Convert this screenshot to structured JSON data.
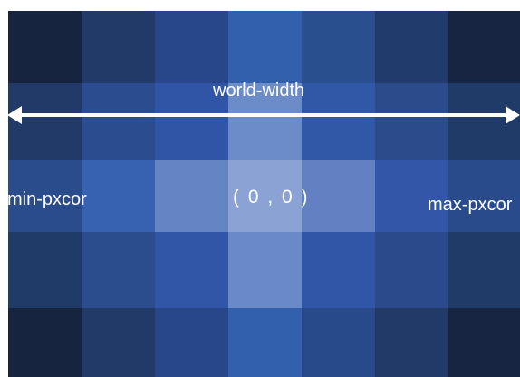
{
  "diagram": {
    "world_width_label": "world-width",
    "min_label": "min-pxcor",
    "origin_label": "( 0 , 0 )",
    "max_label": "max-pxcor",
    "arrow_color": "#ffffff",
    "patch_colors": [
      [
        "#17243f",
        "#223a68",
        "#28478b",
        "#3360ac",
        "#294f8f",
        "#213c6c",
        "#172542"
      ],
      [
        "#223a68",
        "#2b4c8f",
        "#3054a6",
        "#6b8bc9",
        "#3158a7",
        "#2b4b8b",
        "#213b69"
      ],
      [
        "#2a4c8c",
        "#3761b1",
        "#6584c4",
        "#8ba3d4",
        "#6280c2",
        "#3356a9",
        "#2a4b8b"
      ],
      [
        "#213b69",
        "#2b4c8d",
        "#3156a7",
        "#6a89c8",
        "#3156a7",
        "#2b4a8c",
        "#213b69"
      ],
      [
        "#17243f",
        "#223a68",
        "#28478b",
        "#3360ac",
        "#284a8b",
        "#223a68",
        "#172542"
      ]
    ]
  }
}
